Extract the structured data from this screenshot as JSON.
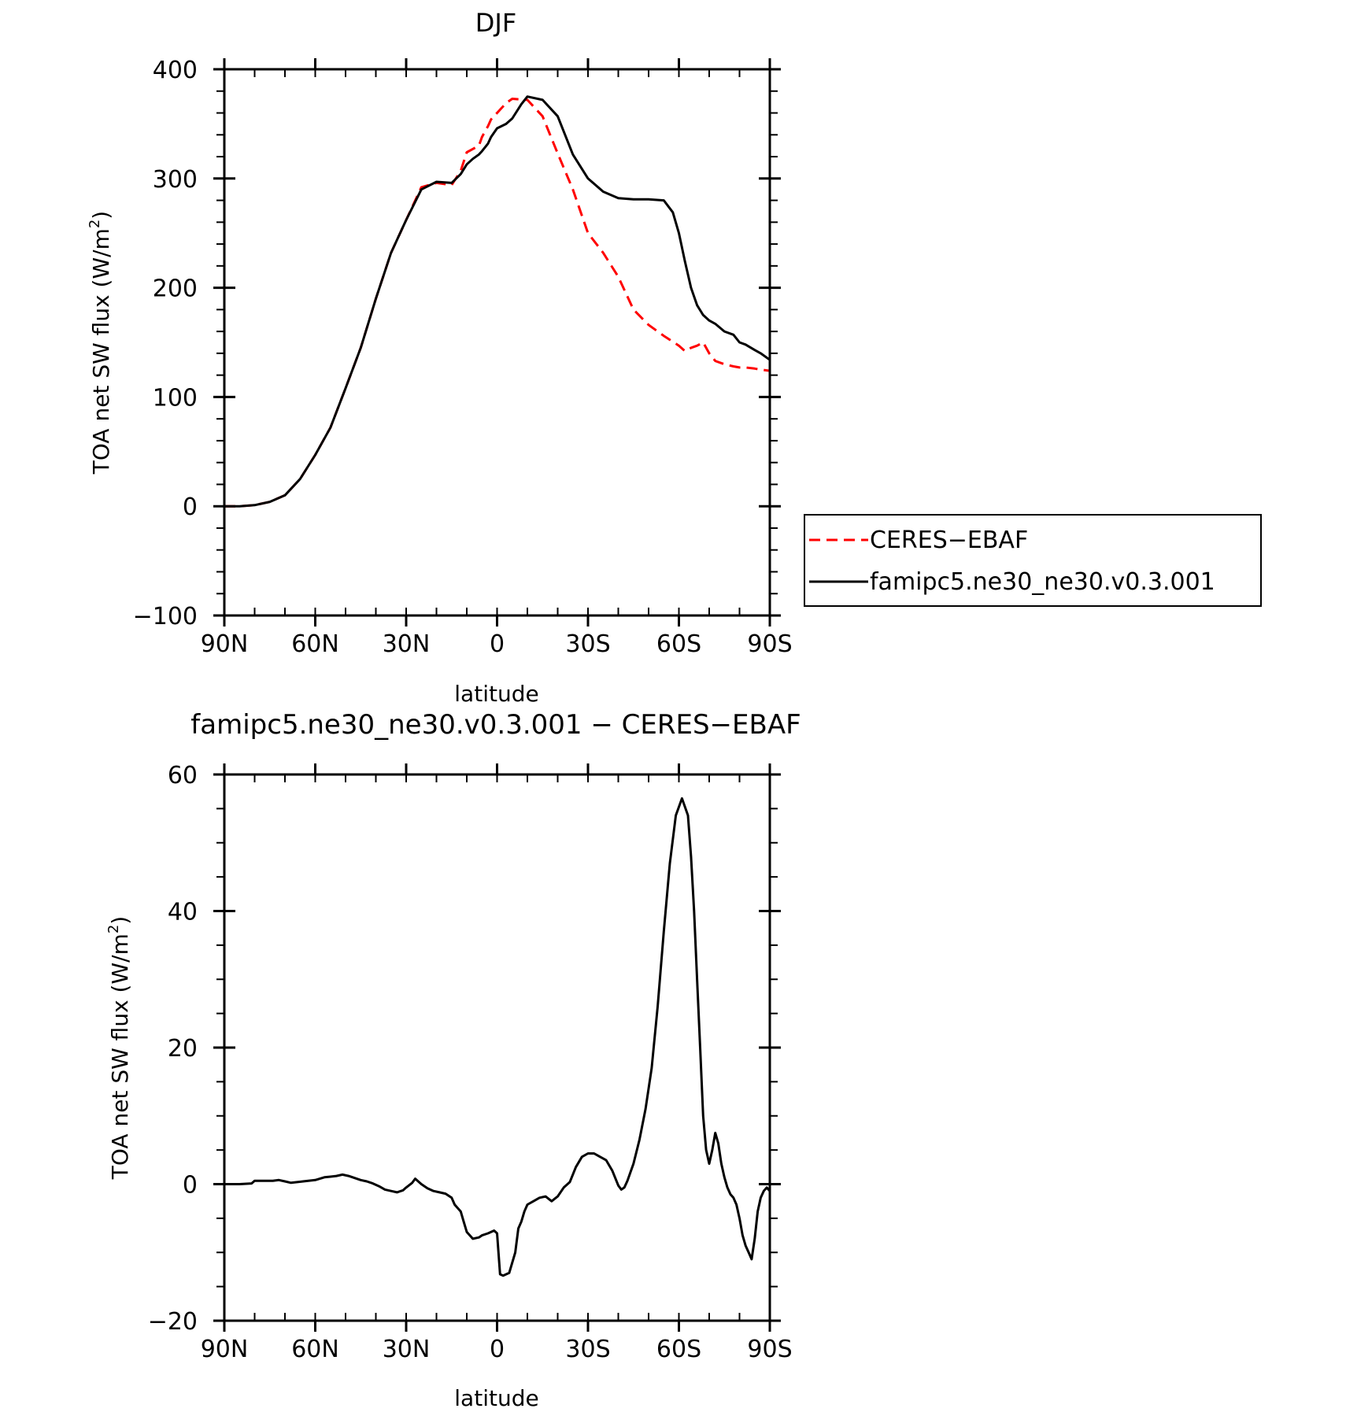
{
  "chart_data": [
    {
      "type": "line",
      "title": "DJF",
      "xlabel": "latitude",
      "ylabel": "TOA net SW flux (W/m",
      "ylabel_sup": "2",
      "ylabel_end": ")",
      "xlim": [
        90,
        -90
      ],
      "ylim": [
        -100,
        400
      ],
      "x_ticks": [
        90,
        60,
        30,
        0,
        -30,
        -60,
        -90
      ],
      "x_tick_labels": [
        "90N",
        "60N",
        "30N",
        "0",
        "30S",
        "60S",
        "90S"
      ],
      "y_ticks": [
        -100,
        0,
        100,
        200,
        300,
        400
      ],
      "y_tick_labels": [
        "−100",
        "0",
        "100",
        "200",
        "300",
        "400"
      ],
      "legend_position": "right",
      "series": [
        {
          "name": "CERES−EBAF",
          "color": "#ff0000",
          "dash": "dashed",
          "x": [
            90,
            85,
            80,
            75,
            70,
            65,
            60,
            55,
            50,
            45,
            40,
            35,
            30,
            25,
            20,
            15,
            12,
            10,
            8,
            6,
            5,
            3,
            2,
            0,
            -3,
            -5,
            -10,
            -15,
            -20,
            -25,
            -28,
            -30,
            -35,
            -40,
            -45,
            -50,
            -55,
            -60,
            -62,
            -64,
            -66,
            -68,
            -70,
            -72,
            -75,
            -78,
            -80,
            -82,
            -85,
            -87,
            -90
          ],
          "y": [
            0,
            0,
            1,
            4,
            10,
            25,
            47,
            72,
            108,
            145,
            190,
            232,
            262,
            292,
            296,
            294,
            307,
            324,
            327,
            330,
            338,
            348,
            354,
            360,
            369,
            373,
            372,
            357,
            323,
            290,
            266,
            250,
            232,
            210,
            180,
            166,
            156,
            147,
            142,
            145,
            147,
            150,
            140,
            133,
            130,
            128,
            127,
            127,
            126,
            125,
            124
          ]
        },
        {
          "name": "famipc5.ne30_ne30.v0.3.001",
          "color": "#000000",
          "dash": "solid",
          "x": [
            90,
            85,
            80,
            75,
            70,
            65,
            60,
            55,
            50,
            45,
            40,
            35,
            30,
            25,
            20,
            15,
            12,
            10,
            8,
            6,
            5,
            3,
            2,
            0,
            -3,
            -5,
            -8,
            -10,
            -15,
            -20,
            -25,
            -30,
            -35,
            -40,
            -45,
            -50,
            -55,
            -58,
            -60,
            -62,
            -64,
            -66,
            -68,
            -70,
            -72,
            -75,
            -78,
            -80,
            -82,
            -85,
            -87,
            -90
          ],
          "y": [
            0,
            0,
            1,
            4,
            10,
            25,
            47,
            72,
            108,
            145,
            190,
            232,
            262,
            290,
            297,
            296,
            304,
            313,
            318,
            322,
            325,
            332,
            338,
            346,
            350,
            355,
            368,
            375,
            372,
            357,
            322,
            300,
            288,
            282,
            281,
            281,
            280,
            269,
            250,
            224,
            200,
            184,
            175,
            170,
            167,
            160,
            157,
            150,
            148,
            143,
            140,
            134
          ]
        }
      ]
    },
    {
      "type": "line",
      "title": "famipc5.ne30_ne30.v0.3.001 − CERES−EBAF",
      "xlabel": "latitude",
      "ylabel": "TOA net SW flux (W/m",
      "ylabel_sup": "2",
      "ylabel_end": ")",
      "xlim": [
        90,
        -90
      ],
      "ylim": [
        -20,
        60
      ],
      "x_ticks": [
        90,
        60,
        30,
        0,
        -30,
        -60,
        -90
      ],
      "x_tick_labels": [
        "90N",
        "60N",
        "30N",
        "0",
        "30S",
        "60S",
        "90S"
      ],
      "y_ticks": [
        -20,
        0,
        20,
        40,
        60
      ],
      "y_tick_labels": [
        "−20",
        "0",
        "20",
        "40",
        "60"
      ],
      "series": [
        {
          "name": "",
          "color": "#000000",
          "dash": "solid",
          "x": [
            90,
            85,
            81,
            80,
            74,
            72,
            70,
            68,
            64,
            60,
            57,
            55,
            53,
            51,
            49,
            47,
            45,
            43,
            41,
            39,
            37,
            35,
            33,
            31,
            30,
            28,
            27,
            25,
            23,
            21,
            19,
            17,
            15,
            14,
            12,
            11,
            10,
            8,
            6,
            5,
            3,
            1,
            0,
            -1,
            -2,
            -4,
            -6,
            -7,
            -8,
            -9,
            -10,
            -12,
            -14,
            -16,
            -18,
            -20,
            -22,
            -24,
            -26,
            -28,
            -30,
            -32,
            -34,
            -36,
            -38,
            -40,
            -41,
            -42,
            -43,
            -45,
            -47,
            -49,
            -51,
            -53,
            -55,
            -57,
            -59,
            -61,
            -63,
            -64,
            -65,
            -66,
            -67,
            -68,
            -69,
            -70,
            -71,
            -72,
            -73,
            -74,
            -75,
            -76,
            -77,
            -78,
            -79,
            -80,
            -81,
            -82,
            -83,
            -84,
            -85,
            -86,
            -87,
            -88,
            -89,
            -90
          ],
          "y": [
            0,
            0,
            0.1,
            0.5,
            0.5,
            0.6,
            0.4,
            0.2,
            0.4,
            0.6,
            1.0,
            1.1,
            1.2,
            1.4,
            1.2,
            0.9,
            0.6,
            0.4,
            0.1,
            -0.3,
            -0.8,
            -1.0,
            -1.2,
            -0.9,
            -0.5,
            0.2,
            0.8,
            0.0,
            -0.6,
            -1.0,
            -1.2,
            -1.4,
            -2.0,
            -3.0,
            -4.0,
            -5.5,
            -7.0,
            -8.0,
            -7.8,
            -7.5,
            -7.2,
            -6.8,
            -7.2,
            -13.2,
            -13.4,
            -13.0,
            -10.0,
            -6.5,
            -5.5,
            -4.0,
            -3.0,
            -2.5,
            -2.0,
            -1.8,
            -2.5,
            -1.8,
            -0.5,
            0.3,
            2.5,
            4.0,
            4.5,
            4.5,
            4.0,
            3.5,
            2.0,
            -0.2,
            -0.8,
            -0.5,
            0.5,
            3.0,
            6.5,
            11.0,
            17.0,
            26.0,
            37.0,
            47.0,
            54.0,
            56.5,
            54.0,
            48.0,
            40.0,
            30.0,
            20.0,
            10.0,
            5.0,
            3.0,
            5.0,
            7.5,
            6.0,
            3.0,
            1.0,
            -0.5,
            -1.5,
            -2.0,
            -3.0,
            -5.0,
            -7.5,
            -9.0,
            -10.0,
            -11.0,
            -8.0,
            -4.0,
            -2.0,
            -1.0,
            -0.5,
            -1.0
          ]
        }
      ]
    }
  ]
}
